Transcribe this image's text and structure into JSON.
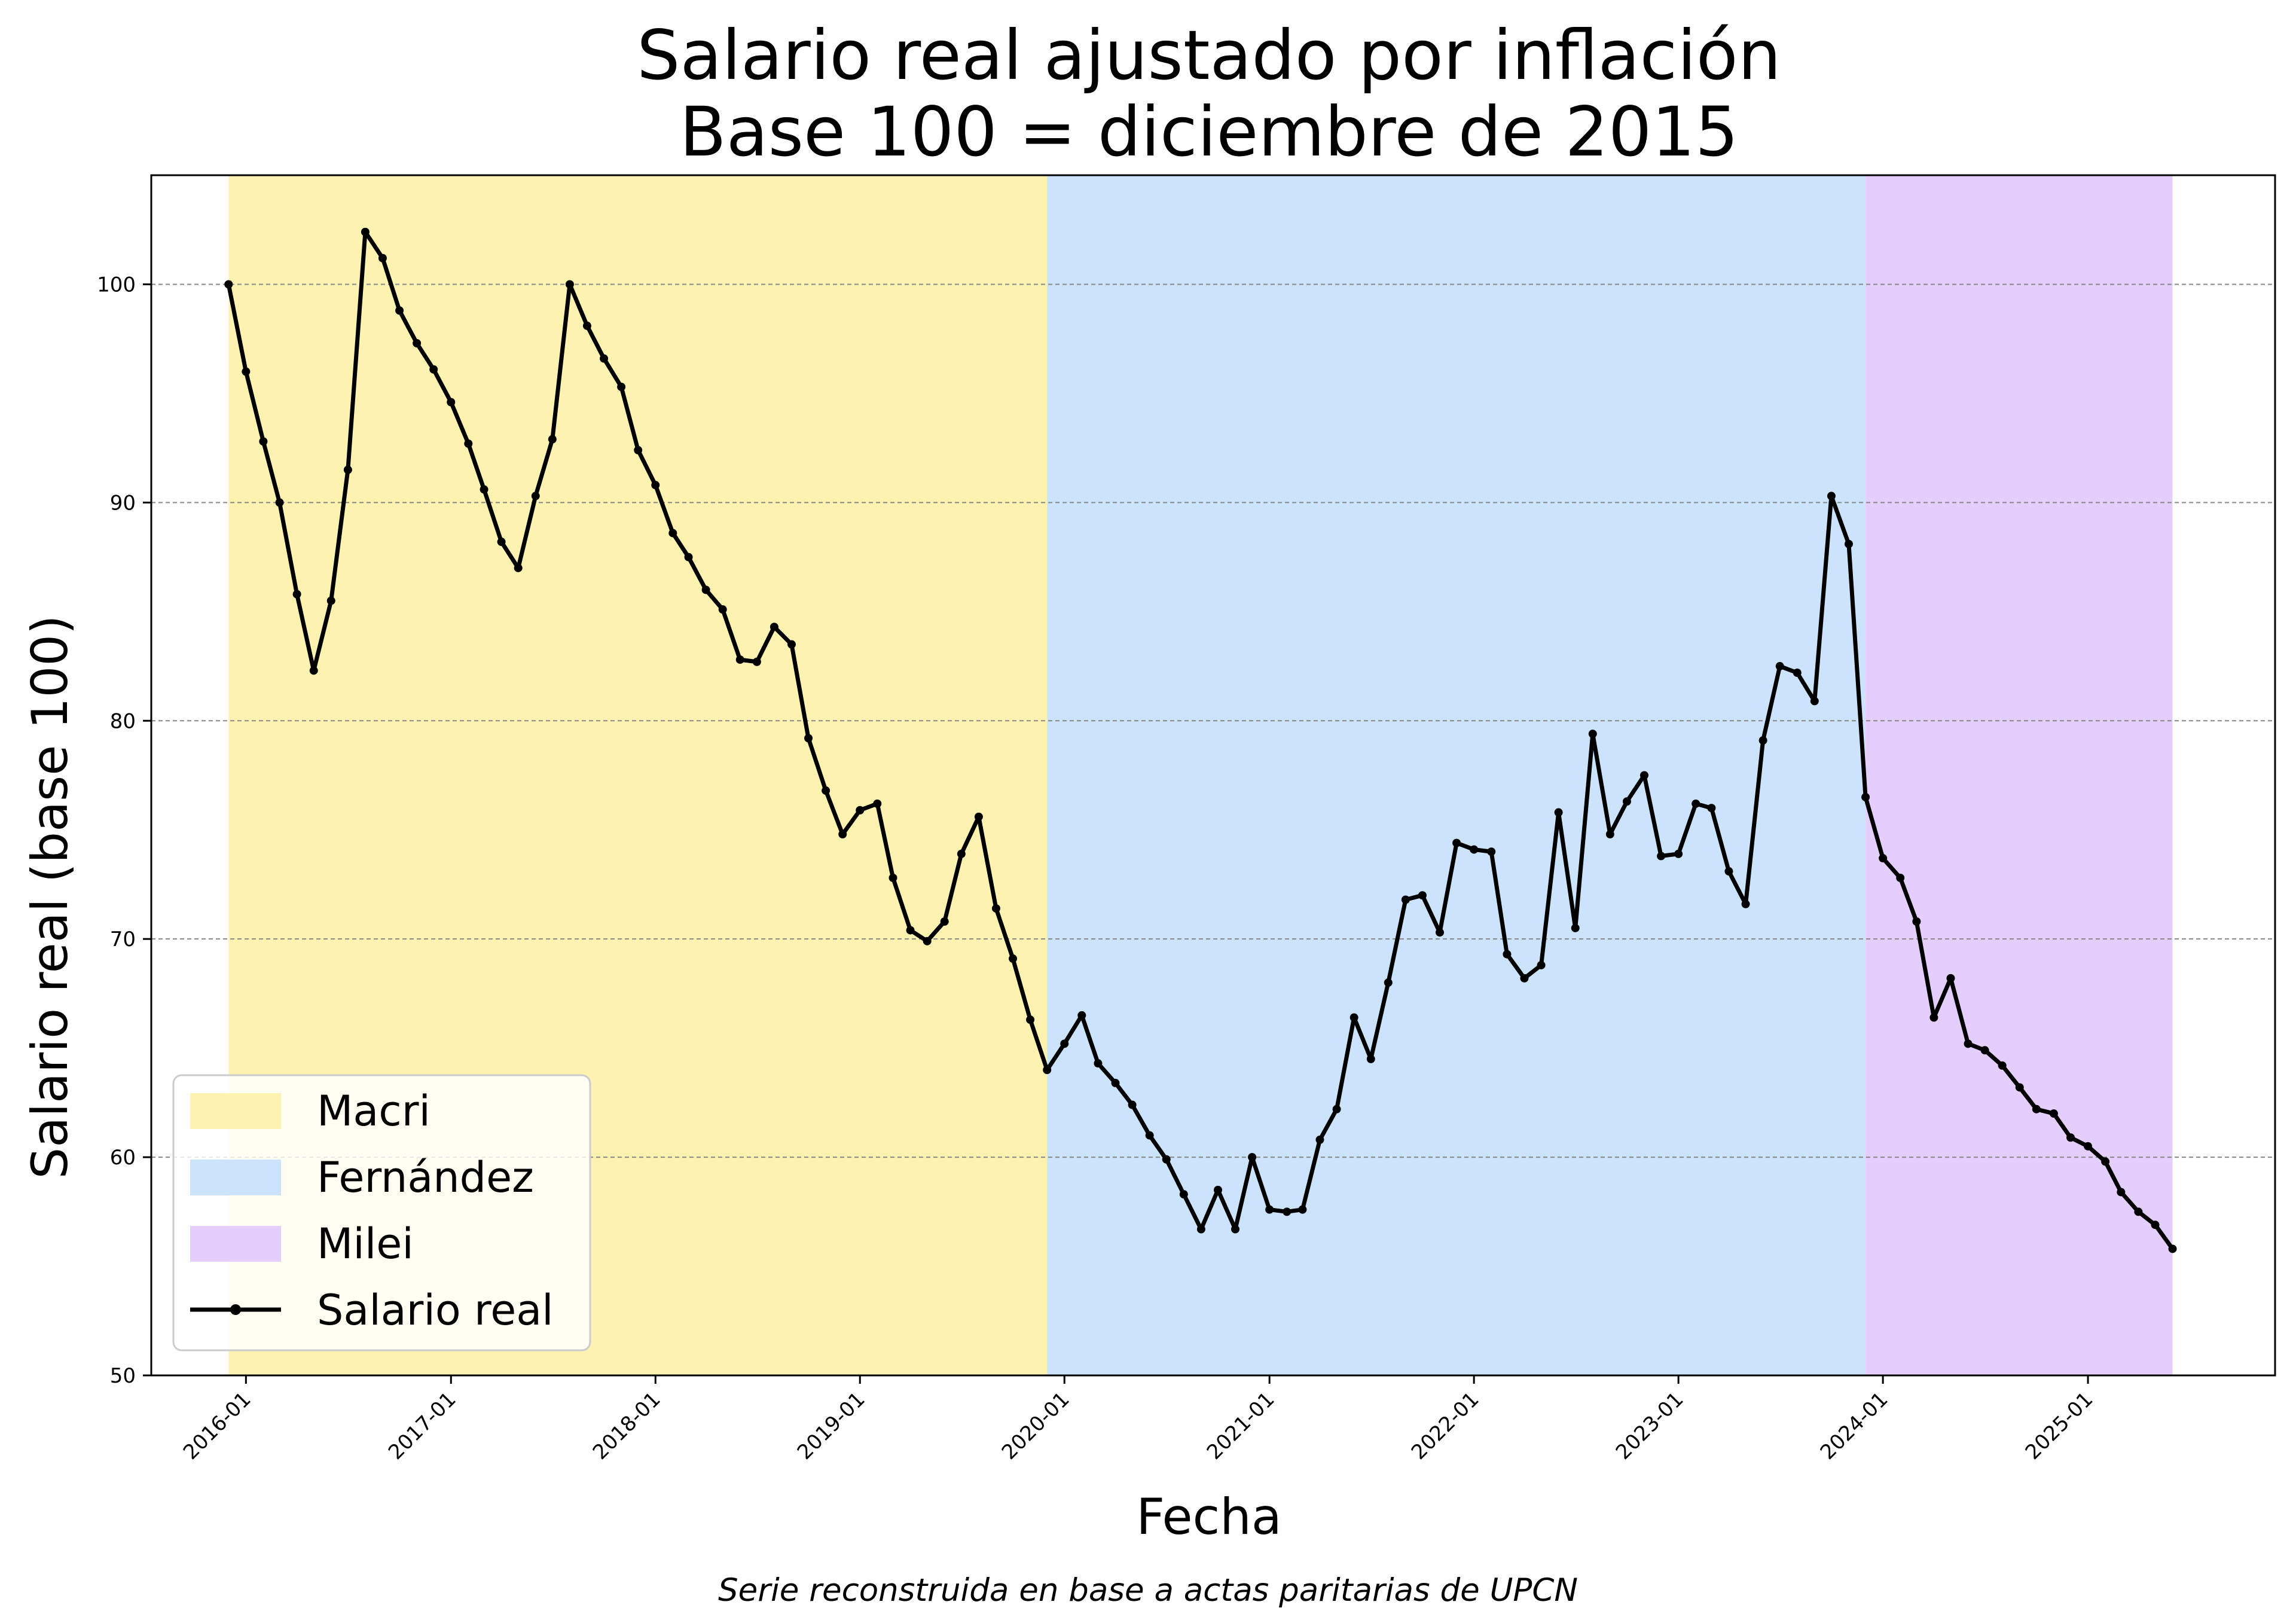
{
  "chart_data": {
    "type": "line",
    "title": [
      "Salario real ajustado por inflación",
      "Base 100 = diciembre de 2015"
    ],
    "xlabel": "Fecha",
    "ylabel": "Salario real (base 100)",
    "footnote": "Serie reconstruida en base a actas paritarias de UPCN",
    "ylim": [
      50,
      105
    ],
    "xlim": [
      "2015-07-16",
      "2025-12-01"
    ],
    "yticks": [
      50,
      60,
      70,
      80,
      90,
      100
    ],
    "xticks": [
      "2016-01",
      "2017-01",
      "2018-01",
      "2019-01",
      "2020-01",
      "2021-01",
      "2022-01",
      "2023-01",
      "2024-01",
      "2025-01"
    ],
    "grid": "horizontal-dashed",
    "legend_position": "lower-left",
    "periods": [
      {
        "name": "Macri",
        "start": "2015-12",
        "end": "2019-12",
        "color": "#fdf2b0"
      },
      {
        "name": "Fernández",
        "start": "2019-12",
        "end": "2023-12",
        "color": "#cce4fb"
      },
      {
        "name": "Milei",
        "start": "2023-12",
        "end": "2025-06",
        "color": "#e4cffc"
      }
    ],
    "series": [
      {
        "name": "Salario real",
        "color": "#000000",
        "x": [
          "2015-12",
          "2016-01",
          "2016-02",
          "2016-03",
          "2016-04",
          "2016-05",
          "2016-06",
          "2016-07",
          "2016-08",
          "2016-09",
          "2016-10",
          "2016-11",
          "2016-12",
          "2017-01",
          "2017-02",
          "2017-03",
          "2017-04",
          "2017-05",
          "2017-06",
          "2017-07",
          "2017-08",
          "2017-09",
          "2017-10",
          "2017-11",
          "2017-12",
          "2018-01",
          "2018-02",
          "2018-03",
          "2018-04",
          "2018-05",
          "2018-06",
          "2018-07",
          "2018-08",
          "2018-09",
          "2018-10",
          "2018-11",
          "2018-12",
          "2019-01",
          "2019-02",
          "2019-03",
          "2019-04",
          "2019-05",
          "2019-06",
          "2019-07",
          "2019-08",
          "2019-09",
          "2019-10",
          "2019-11",
          "2019-12",
          "2020-01",
          "2020-02",
          "2020-03",
          "2020-04",
          "2020-05",
          "2020-06",
          "2020-07",
          "2020-08",
          "2020-09",
          "2020-10",
          "2020-11",
          "2020-12",
          "2021-01",
          "2021-02",
          "2021-03",
          "2021-04",
          "2021-05",
          "2021-06",
          "2021-07",
          "2021-08",
          "2021-09",
          "2021-10",
          "2021-11",
          "2021-12",
          "2022-01",
          "2022-02",
          "2022-03",
          "2022-04",
          "2022-05",
          "2022-06",
          "2022-07",
          "2022-08",
          "2022-09",
          "2022-10",
          "2022-11",
          "2022-12",
          "2023-01",
          "2023-02",
          "2023-03",
          "2023-04",
          "2023-05",
          "2023-06",
          "2023-07",
          "2023-08",
          "2023-09",
          "2023-10",
          "2023-11",
          "2023-12",
          "2024-01",
          "2024-02",
          "2024-03",
          "2024-04",
          "2024-05",
          "2024-06",
          "2024-07",
          "2024-08",
          "2024-09",
          "2024-10",
          "2024-11",
          "2024-12",
          "2025-01",
          "2025-02",
          "2025-03",
          "2025-04",
          "2025-05",
          "2025-06"
        ],
        "values": [
          100.0,
          96.0,
          92.8,
          90.0,
          85.8,
          82.3,
          85.5,
          91.5,
          102.4,
          101.2,
          98.8,
          97.3,
          96.1,
          94.6,
          92.7,
          90.6,
          88.2,
          87.0,
          90.3,
          92.9,
          100.0,
          98.1,
          96.6,
          95.3,
          92.4,
          90.8,
          88.6,
          87.5,
          86.0,
          85.1,
          82.8,
          82.7,
          84.3,
          83.5,
          79.2,
          76.8,
          74.8,
          75.9,
          76.2,
          72.8,
          70.4,
          69.9,
          70.8,
          73.9,
          75.6,
          71.4,
          69.1,
          66.3,
          64.0,
          65.2,
          66.5,
          64.3,
          63.4,
          62.4,
          61.0,
          59.9,
          58.3,
          56.7,
          58.5,
          56.7,
          60.0,
          57.6,
          57.5,
          57.6,
          60.8,
          62.2,
          66.4,
          64.5,
          68.0,
          71.8,
          72.0,
          70.3,
          74.4,
          74.1,
          74.0,
          69.3,
          68.2,
          68.8,
          75.8,
          70.5,
          79.4,
          74.8,
          76.3,
          77.5,
          73.8,
          73.9,
          76.2,
          76.0,
          73.1,
          71.6,
          79.1,
          82.5,
          82.2,
          80.9,
          90.3,
          88.1,
          76.5,
          73.7,
          72.8,
          70.8,
          66.4,
          68.2,
          65.2,
          64.9,
          64.2,
          63.2,
          62.2,
          62.0,
          60.9,
          60.5,
          59.8,
          58.4,
          57.5,
          56.9,
          55.8
        ]
      }
    ]
  }
}
